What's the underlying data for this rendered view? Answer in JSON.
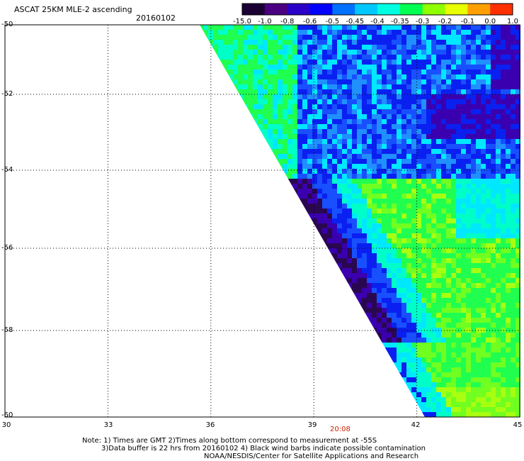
{
  "header": {
    "title": "ASCAT 25KM MLE-2 ascending",
    "date": "20160102"
  },
  "colorbar": {
    "labels": [
      "-15.0",
      "-1.0",
      "-0.8",
      "-0.6",
      "-0.5",
      "-0.45",
      "-0.4",
      "-0.35",
      "-0.3",
      "-0.2",
      "-0.1",
      "0.0",
      "1.0"
    ],
    "colors": [
      "#1a0033",
      "#4b0082",
      "#2a00c8",
      "#0000ff",
      "#0070ff",
      "#00c8ff",
      "#00ffe0",
      "#00ff50",
      "#90ff00",
      "#e8ff00",
      "#ffa000",
      "#ff3000"
    ]
  },
  "axes": {
    "lat_labels": [
      "-50",
      "-52",
      "-54",
      "-56",
      "-58",
      "-60"
    ],
    "lon_labels": [
      "30",
      "33",
      "36",
      "39",
      "42",
      "45"
    ],
    "lat_range": [
      -60,
      -50
    ],
    "lon_range": [
      30,
      45
    ],
    "grid": "dotted"
  },
  "pass_time": "20:08",
  "notes": {
    "line1": "Note: 1) Times are GMT 2)Times along bottom correspond to measurement at -55S",
    "line2": "3)Data buffer is 22 hrs from 20160102 4) Black wind barbs indicate possible contamination",
    "line3": "NOAA/NESDIS/Center for Satellite Applications and Research"
  }
}
